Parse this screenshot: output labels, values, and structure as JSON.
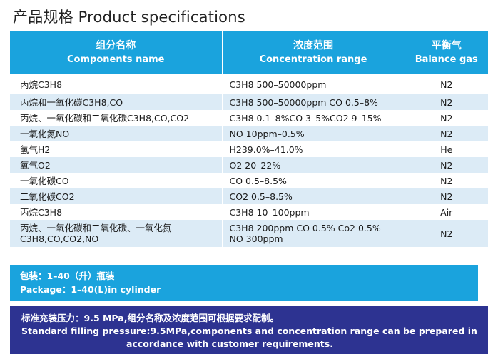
{
  "page_title": "产品规格 Product specifications",
  "table": {
    "headers": [
      {
        "cn": "组分名称",
        "en": "Components name"
      },
      {
        "cn": "浓度范围",
        "en": "Concentration range"
      },
      {
        "cn": "平衡气",
        "en": "Balance gas"
      }
    ],
    "rows": [
      {
        "component": "丙烷C3H8",
        "concentration": "C3H8 500–50000ppm",
        "balance": "N2"
      },
      {
        "component": "丙烷和一氧化碳C3H8,CO",
        "concentration": "C3H8 500–50000ppm CO 0.5–8%",
        "balance": "N2"
      },
      {
        "component": "丙烷、一氧化碳和二氧化碳C3H8,CO,CO2",
        "concentration": "C3H8 0.1–8%CO 3–5%CO2 9–15%",
        "balance": "N2"
      },
      {
        "component": "一氧化氮NO",
        "concentration": "NO 10ppm–0.5%",
        "balance": "N2"
      },
      {
        "component": "氢气H2",
        "concentration": "H239.0%–41.0%",
        "balance": "He"
      },
      {
        "component": "氧气O2",
        "concentration": "O2 20–22%",
        "balance": "N2"
      },
      {
        "component": "一氧化碳CO",
        "concentration": "CO 0.5–8.5%",
        "balance": "N2"
      },
      {
        "component": "二氧化碳CO2",
        "concentration": "CO2 0.5–8.5%",
        "balance": "N2"
      },
      {
        "component": "丙烷C3H8",
        "concentration": "C3H8 10–100ppm",
        "balance": "Air"
      },
      {
        "component_line1": "丙烷、一氧化碳和二氧化碳、一氧化氮",
        "component_line2": "C3H8,CO,CO2,NO",
        "concentration_line1": "C3H8 200ppm CO 0.5% Co2 0.5%",
        "concentration_line2": "NO 300ppm",
        "balance": "N2"
      }
    ]
  },
  "packaging": {
    "cn": "包装：1–40（升）瓶装",
    "en": "Package：1–40(L)in cylinder"
  },
  "filling": {
    "cn": "标准充装压力：9.5 MPa,组分名称及浓度范围可根据要求配制。",
    "en_line1": "Standard filling pressure:9.5MPa,components and concentration range can be prepared in",
    "en_line2": "accordance with customer requirements."
  },
  "colors": {
    "header_blue": "#1aa3dd",
    "row_stripe": "#dcebf6",
    "footer_navy": "#2d3391"
  }
}
